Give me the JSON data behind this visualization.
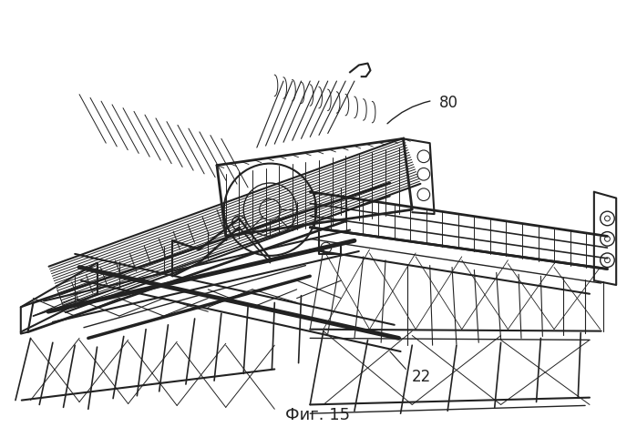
{
  "title": "Фиг. 15",
  "label_80": "80",
  "label_22": "22",
  "bg_color": "#ffffff",
  "line_color": "#222222",
  "title_fontsize": 13,
  "fig_width": 6.99,
  "fig_height": 4.69,
  "dpi": 100
}
